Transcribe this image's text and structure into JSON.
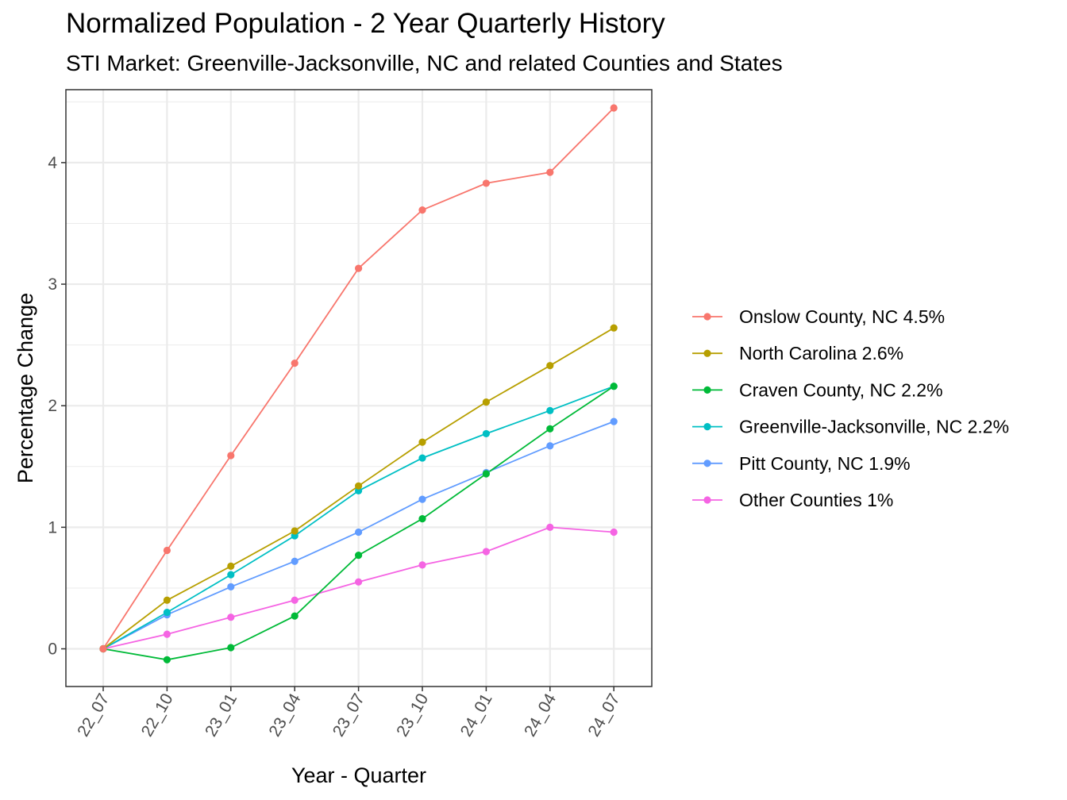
{
  "chart_data": {
    "type": "line",
    "title": "Normalized Population - 2 Year Quarterly History",
    "subtitle": "STI Market: Greenville-Jacksonville, NC and related Counties and States",
    "xlabel": "Year - Quarter",
    "ylabel": "Percentage Change",
    "categories": [
      "22_07",
      "22_10",
      "23_01",
      "23_04",
      "23_07",
      "23_10",
      "24_01",
      "24_04",
      "24_07"
    ],
    "ylim": [
      -0.31,
      4.6
    ],
    "yticks": [
      0,
      1,
      2,
      3,
      4
    ],
    "grid": true,
    "legend_position": "right",
    "series": [
      {
        "name": "Onslow County, NC 4.5%",
        "color": "#F8766D",
        "values": [
          0,
          0.81,
          1.59,
          2.35,
          3.13,
          3.61,
          3.83,
          3.92,
          4.45
        ]
      },
      {
        "name": "North Carolina 2.6%",
        "color": "#B79F00",
        "values": [
          0,
          0.4,
          0.68,
          0.97,
          1.34,
          1.7,
          2.03,
          2.33,
          2.64
        ]
      },
      {
        "name": "Craven County, NC 2.2%",
        "color": "#00BA38",
        "values": [
          0,
          -0.09,
          0.01,
          0.27,
          0.77,
          1.07,
          1.44,
          1.81,
          2.16
        ]
      },
      {
        "name": "Greenville-Jacksonville, NC 2.2%",
        "color": "#00BFC4",
        "values": [
          0,
          0.3,
          0.61,
          0.93,
          1.3,
          1.57,
          1.77,
          1.96,
          2.16
        ]
      },
      {
        "name": "Pitt County, NC 1.9%",
        "color": "#619CFF",
        "values": [
          0,
          0.28,
          0.51,
          0.72,
          0.96,
          1.23,
          1.45,
          1.67,
          1.87
        ]
      },
      {
        "name": "Other Counties 1%",
        "color": "#F564E3",
        "values": [
          0,
          0.12,
          0.26,
          0.4,
          0.55,
          0.69,
          0.8,
          1.0,
          0.96
        ]
      }
    ]
  }
}
